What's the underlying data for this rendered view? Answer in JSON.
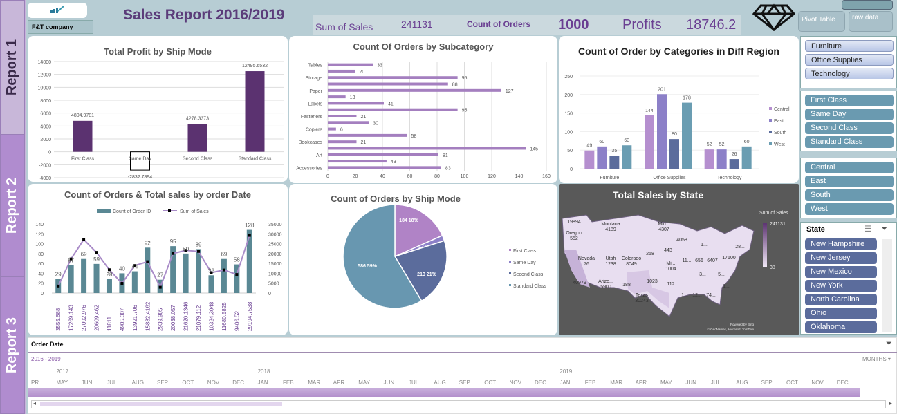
{
  "tabs": [
    "Report 1",
    "Report 2",
    "Report 3"
  ],
  "header": {
    "company": "F&T company",
    "title": "Sales Report 2016/2019",
    "kpis": {
      "sales_label": "Sum of Sales",
      "sales_value": "241131",
      "orders_label": "Count of Orders",
      "orders_value": "1000",
      "profit_label": "Profits",
      "profit_value": "18746.2"
    },
    "buttons": {
      "pivot": "Pivot Table",
      "raw": "raw data"
    },
    "logo_icon": "diamond-icon"
  },
  "slicers": {
    "category": [
      "Furniture",
      "Office Supplies",
      "Technology"
    ],
    "ship_mode": [
      "First Class",
      "Same Day",
      "Second Class",
      "Standard Class"
    ],
    "region": [
      "Central",
      "East",
      "South",
      "West"
    ],
    "state": {
      "title": "State",
      "items": [
        "New Hampshire",
        "New Jersey",
        "New Mexico",
        "New York",
        "North Carolina",
        "Ohio",
        "Oklahoma"
      ]
    }
  },
  "timeline": {
    "title": "Order Date",
    "range": "2016 - 2019",
    "level": "MONTHS",
    "years": [
      {
        "label": "2017",
        "at": 1
      },
      {
        "label": "2018",
        "at": 9
      },
      {
        "label": "2019",
        "at": 21
      }
    ],
    "months": [
      "PR",
      "MAY",
      "JUN",
      "JUL",
      "AUG",
      "SEP",
      "OCT",
      "NOV",
      "DEC",
      "JAN",
      "FEB",
      "MAR",
      "APR",
      "MAY",
      "JUN",
      "JUL",
      "AUG",
      "SEP",
      "OCT",
      "NOV",
      "DEC",
      "JAN",
      "FEB",
      "MAR",
      "APR",
      "MAY",
      "JUN",
      "JUL",
      "AUG",
      "SEP",
      "OCT",
      "NOV",
      "DEC"
    ]
  },
  "chart_data": [
    {
      "id": "profit",
      "type": "bar",
      "title": "Total Profit by Ship Mode",
      "categories": [
        "First Class",
        "Same Day",
        "Second Class",
        "Standard Class"
      ],
      "values": [
        4804.9781,
        -2832.7894,
        4278.3373,
        12495.6532
      ],
      "ylim": [
        -4000,
        14000
      ],
      "yticks": [
        -4000,
        -2000,
        0,
        2000,
        4000,
        6000,
        8000,
        10000,
        12000,
        14000
      ],
      "color": "#5b3270",
      "grid": true
    },
    {
      "id": "subcat",
      "type": "bar",
      "orientation": "horizontal",
      "title": "Count Of Orders by Subcategory",
      "categories": [
        "Tables",
        "",
        "Storage",
        "",
        "Paper",
        "",
        "Labels",
        "",
        "Fasteners",
        "",
        "Copiers",
        "",
        "Bookcases",
        "",
        "Art",
        "",
        "Accessories"
      ],
      "values": [
        33,
        20,
        95,
        88,
        127,
        13,
        41,
        95,
        21,
        30,
        6,
        58,
        21,
        145,
        81,
        43,
        83
      ],
      "xlim": [
        0,
        160
      ],
      "xticks": [
        0,
        20,
        40,
        60,
        80,
        100,
        120,
        140,
        160
      ],
      "color": "#a47fbf",
      "grid": true
    },
    {
      "id": "region",
      "type": "bar",
      "title": "Count of Order by Categories in Diff Region",
      "categories": [
        "Furniture",
        "Office Supplies",
        "Technology"
      ],
      "series": [
        {
          "name": "Central",
          "values": [
            49,
            144,
            52
          ],
          "color": "#b58fcf"
        },
        {
          "name": "East",
          "values": [
            60,
            201,
            52
          ],
          "color": "#8c80c8"
        },
        {
          "name": "South",
          "values": [
            35,
            80,
            26
          ],
          "color": "#5b6c9c"
        },
        {
          "name": "West",
          "values": [
            63,
            178,
            60
          ],
          "color": "#6a9db2"
        }
      ],
      "ylim": [
        0,
        250
      ],
      "yticks": [
        0,
        50,
        100,
        150,
        200,
        250
      ],
      "legend": "right"
    },
    {
      "id": "combo",
      "type": "bar+line",
      "title": "Count of Orders & Total sales by order Date",
      "series": [
        {
          "name": "Count of Order ID",
          "type": "bar",
          "values": [
            29,
            57,
            69,
            59,
            28,
            40,
            44,
            92,
            27,
            95,
            80,
            89,
            36,
            69,
            58,
            128
          ],
          "color": "#5a8894"
        },
        {
          "name": "Sum of Sales",
          "type": "line",
          "values": [
            3555.688,
            17269.143,
            27092.976,
            20609.462,
            11811,
            4905.007,
            13921.706,
            15882.4162,
            2939.905,
            20038.057,
            21620.1346,
            21079.112,
            10324.3048,
            11680.5825,
            9406.52,
            29194.7538
          ],
          "color": "#a98bc8"
        }
      ],
      "ylim": [
        0,
        140
      ],
      "yticks": [
        0,
        20,
        40,
        60,
        80,
        100,
        120,
        140
      ],
      "y2lim": [
        0,
        35000
      ],
      "y2ticks": [
        0,
        5000,
        10000,
        15000,
        20000,
        25000,
        30000,
        35000
      ],
      "legend": "top"
    },
    {
      "id": "pie",
      "type": "pie",
      "title": "Count of Orders by Ship Mode",
      "labels": [
        "First Class",
        "Same Day",
        "Second Class",
        "Standard Class"
      ],
      "values": [
        184,
        17,
        213,
        586
      ],
      "percent_labels": [
        "184 18%",
        "17 2%",
        "213 21%",
        "586 59%"
      ],
      "colors": [
        "#b083c6",
        "#8c80c8",
        "#5b6c9c",
        "#6897b0"
      ],
      "legend": "right"
    },
    {
      "id": "map",
      "type": "map",
      "title": "Total Sales by State",
      "legend_title": "Sum of Sales",
      "legend_max": "241131",
      "legend_min": "38",
      "credit1": "Powered by Bing",
      "credit2": "© GeoNames, Microsoft, TomTom",
      "labels": [
        "19894",
        "Montana 4189",
        "Oregon 552",
        "Min... 4307",
        "4058",
        "1...",
        "28...",
        "258",
        "443",
        "Nevada 76",
        "Utah 1238",
        "Colorado 8049",
        "11...",
        "656",
        "6407",
        "17100",
        "Mi... 1004",
        "3...",
        "5...",
        "40979",
        "Arizo... 5900",
        "188",
        "1023",
        "112",
        "1...",
        "Texas 30243",
        "1...",
        "12...",
        "74..."
      ]
    }
  ]
}
